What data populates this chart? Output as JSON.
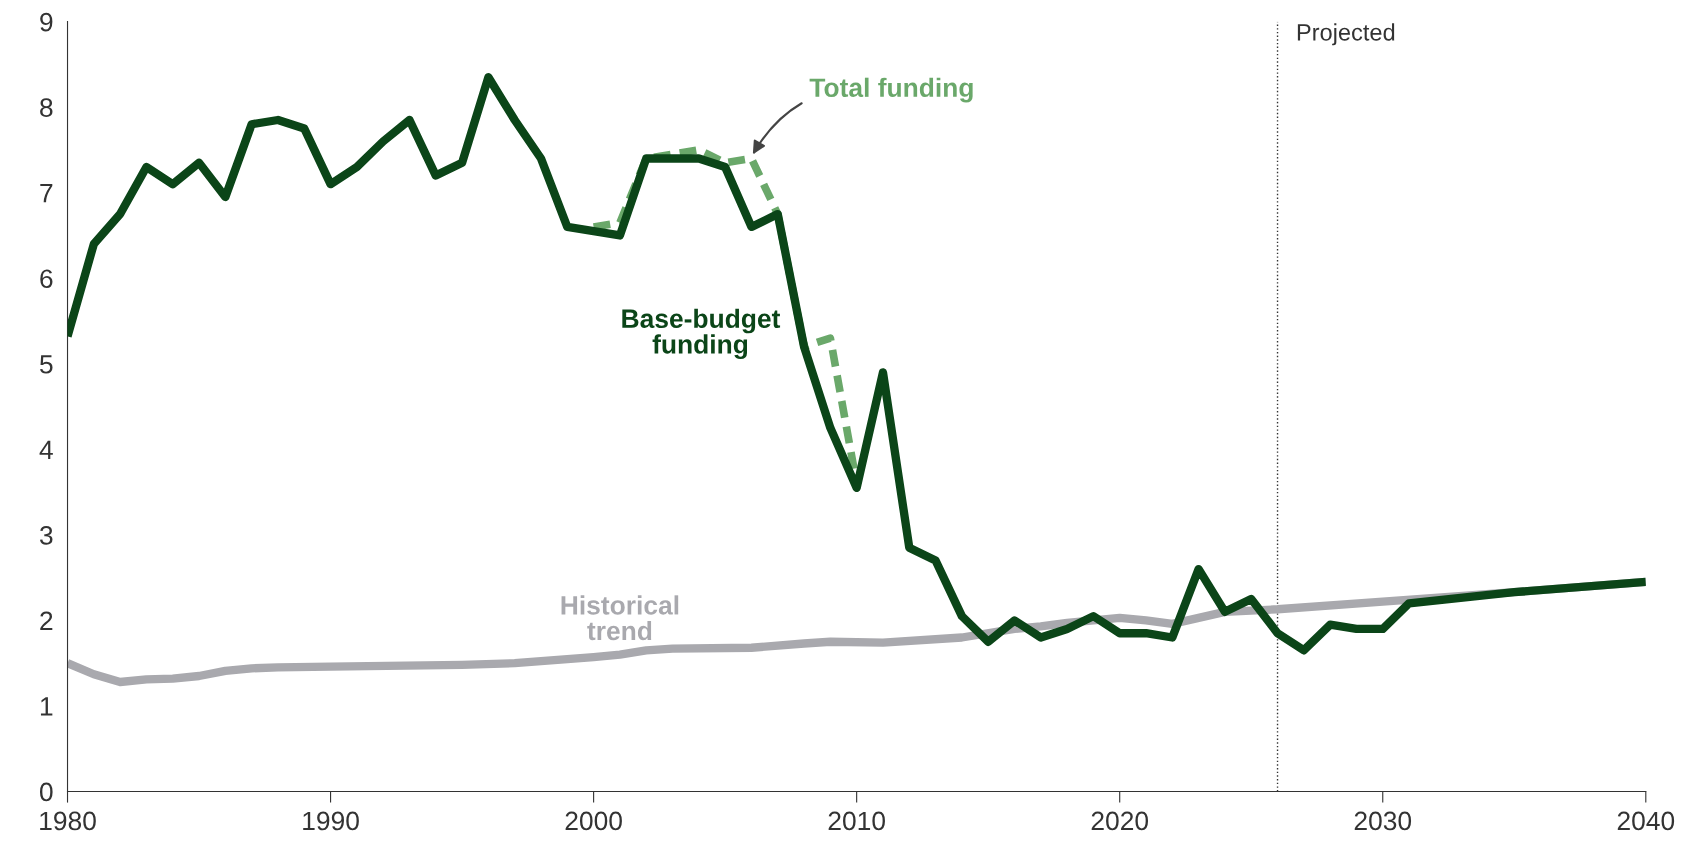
{
  "chart_data": {
    "type": "line",
    "xlim": [
      1980,
      2040
    ],
    "ylim": [
      0,
      9
    ],
    "xticks": [
      1980,
      1990,
      2000,
      2010,
      2020,
      2030,
      2040
    ],
    "yticks": [
      0,
      1,
      2,
      3,
      4,
      5,
      6,
      7,
      8,
      9
    ],
    "grid": false,
    "line_style": "solid",
    "marker": "none",
    "series": [
      {
        "name": "Historical trend",
        "color": "#a9a9ae",
        "x": [
          1980,
          1981,
          1982,
          1983,
          1984,
          1985,
          1986,
          1987,
          1988,
          1990,
          1995,
          1997,
          2000,
          2001,
          2002,
          2003,
          2006,
          2008,
          2009,
          2011,
          2014,
          2016,
          2017,
          2018,
          2020,
          2021,
          2022,
          2023,
          2024,
          2026,
          2030,
          2035,
          2040
        ],
        "values": [
          1.5,
          1.37,
          1.28,
          1.31,
          1.32,
          1.35,
          1.41,
          1.44,
          1.45,
          1.46,
          1.48,
          1.5,
          1.57,
          1.6,
          1.65,
          1.67,
          1.68,
          1.73,
          1.75,
          1.74,
          1.8,
          1.9,
          1.93,
          1.97,
          2.03,
          2.0,
          1.96,
          2.03,
          2.1,
          2.13,
          2.22,
          2.33,
          2.45
        ]
      },
      {
        "name": "Total funding",
        "color": "#6aa86a",
        "line_style": "dashed",
        "x": [
          2000,
          2001,
          2002,
          2003,
          2004,
          2005,
          2006,
          2007,
          2008,
          2009,
          2010
        ],
        "values": [
          6.6,
          6.65,
          7.4,
          7.45,
          7.5,
          7.35,
          7.4,
          6.75,
          5.2,
          5.3,
          3.6
        ]
      },
      {
        "name": "Base-budget funding",
        "color": "#0b4518",
        "x": [
          1980,
          1981,
          1982,
          1983,
          1984,
          1985,
          1986,
          1987,
          1988,
          1989,
          1990,
          1991,
          1992,
          1993,
          1994,
          1995,
          1996,
          1997,
          1998,
          1999,
          2000,
          2001,
          2002,
          2003,
          2004,
          2005,
          2006,
          2007,
          2008,
          2009,
          2010,
          2011,
          2012,
          2013,
          2014,
          2015,
          2016,
          2017,
          2018,
          2019,
          2020,
          2021,
          2022,
          2023,
          2024,
          2025,
          2026,
          2027,
          2028,
          2029,
          2030,
          2031,
          2035,
          2040
        ],
        "values": [
          5.32,
          6.4,
          6.75,
          7.3,
          7.1,
          7.35,
          6.95,
          7.8,
          7.85,
          7.75,
          7.1,
          7.3,
          7.6,
          7.85,
          7.2,
          7.35,
          8.35,
          7.85,
          7.4,
          6.6,
          6.55,
          6.5,
          7.4,
          7.4,
          7.4,
          7.3,
          6.6,
          6.75,
          5.2,
          4.25,
          3.55,
          4.9,
          2.85,
          2.7,
          2.05,
          1.75,
          2.0,
          1.8,
          1.9,
          2.05,
          1.85,
          1.85,
          1.8,
          2.6,
          2.1,
          2.25,
          1.85,
          1.65,
          1.95,
          1.9,
          1.9,
          2.2,
          2.33,
          2.45
        ]
      }
    ],
    "ref_lines": [
      {
        "axis": "x",
        "value": 2026,
        "label": "Projected",
        "color": "#333333",
        "line_style": "dotted"
      }
    ]
  }
}
